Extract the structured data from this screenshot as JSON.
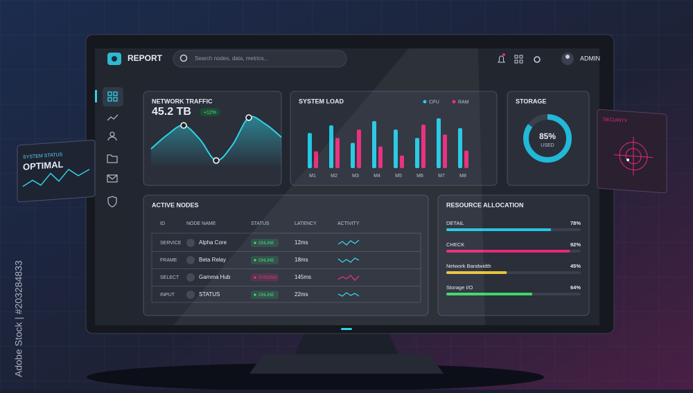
{
  "header": {
    "title": "REPORT",
    "search_placeholder": "Search nodes, data, metrics...",
    "user": "ADMIN"
  },
  "network_traffic": {
    "title": "NETWORK TRAFFIC",
    "value": "45.2 TB",
    "change": "+12%",
    "color": "#2fd3e6",
    "values": [
      40,
      58,
      70,
      52,
      25,
      45,
      80,
      72,
      55
    ]
  },
  "system_load": {
    "title": "SYSTEM LOAD",
    "type": "bar",
    "categories": [
      "M1",
      "M2",
      "M3",
      "M4",
      "M5",
      "M6",
      "M7",
      "M8"
    ],
    "series": [
      {
        "name": "CPU",
        "color": "#22c7e4",
        "values": [
          50,
          61,
          36,
          67,
          55,
          43,
          71,
          57
        ]
      },
      {
        "name": "RAM",
        "color": "#e8287a",
        "values": [
          24,
          43,
          55,
          31,
          18,
          62,
          48,
          25
        ]
      }
    ]
  },
  "storage": {
    "title": "STORAGE",
    "value": 85,
    "value_label": "85%",
    "sublabel": "USED",
    "color": "#22b8d8"
  },
  "active_nodes": {
    "title": "ACTIVE NODES",
    "columns": [
      "ID",
      "NODE NAME",
      "STATUS",
      "LATENCY",
      "ACTIVITY"
    ],
    "rows": [
      {
        "id": "SERVICE",
        "name": "Alpha Core",
        "status": "ONLINE",
        "latency": "12ms",
        "color": "#38e07a"
      },
      {
        "id": "FRAME",
        "name": "Beta Relay",
        "status": "ONLINE",
        "latency": "18ms",
        "color": "#38e07a"
      },
      {
        "id": "SELECT",
        "name": "Gamma Hub",
        "status": "SYNCING",
        "latency": "145ms",
        "color": "#e8287a"
      },
      {
        "id": "INPUT",
        "name": "STATUS",
        "status": "ONLINE",
        "latency": "22ms",
        "color": "#38e07a"
      }
    ]
  },
  "resource_allocation": {
    "title": "RESOURCE ALLOCATION",
    "items": [
      {
        "name": "DETAIL",
        "value": 78,
        "value_label": "78%",
        "color": "#22c7e4"
      },
      {
        "name": "CHECK",
        "value": 92,
        "value_label": "92%",
        "color": "#e8287a"
      },
      {
        "name": "Network Bandwidth",
        "value": 45,
        "value_label": "45%",
        "color": "#e8c53a"
      },
      {
        "name": "Storage I/O",
        "value": 64,
        "value_label": "64%",
        "color": "#3ad86a"
      }
    ]
  },
  "system_status": {
    "label": "SYSTEM STATUS",
    "value": "OPTIMAL"
  },
  "security": {
    "label": "SECURITY"
  },
  "watermark": "Adobe Stock | #203284833"
}
